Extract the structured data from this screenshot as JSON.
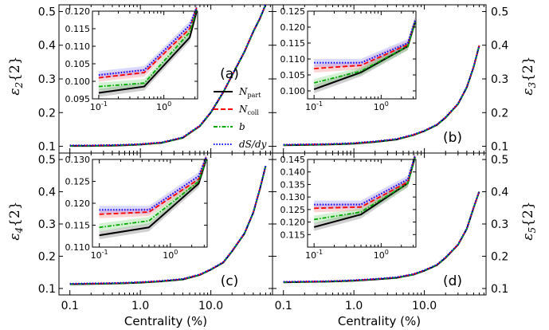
{
  "chart_data": {
    "type": "line",
    "xlabel": "Centrality (%)",
    "x_ticks": [
      "0.1",
      "1.0",
      "10.0"
    ],
    "inset_x_ticks": [
      "10",
      "10"
    ],
    "inset_x_tick_exponents": [
      "-1",
      "0"
    ],
    "legend": [
      {
        "name": "N",
        "sub": "part",
        "color": "#000000",
        "dash": "solid"
      },
      {
        "name": "N",
        "sub": "coll",
        "color": "#ff0000",
        "dash": "dashed"
      },
      {
        "name": "b",
        "sub": "",
        "color": "#00aa00",
        "dash": "dashdot"
      },
      {
        "name": "dS/dy",
        "sub": "",
        "color": "#0000ff",
        "dash": "dotted"
      }
    ],
    "panels": [
      {
        "id": "a",
        "tag": "(a)",
        "ylabel": "ε",
        "ylabel_sub": "2",
        "ylabel_rest": "{2}",
        "ylabel_side": "left",
        "ylim": [
          0.08,
          0.52
        ],
        "yticks": [
          "0.1",
          "0.2",
          "0.3",
          "0.4",
          "0.5"
        ],
        "x": [
          0.1,
          0.2,
          0.4,
          0.6,
          1,
          2,
          4,
          7,
          10,
          15,
          20,
          30,
          40,
          50,
          60
        ],
        "main": {
          "N_part": [
            0.101,
            0.101,
            0.102,
            0.103,
            0.105,
            0.11,
            0.125,
            0.16,
            0.2,
            0.26,
            0.31,
            0.38,
            0.44,
            0.48,
            0.52
          ]
        },
        "inset": {
          "ylim": [
            0.095,
            0.12
          ],
          "yticks": [
            "0.095",
            "0.100",
            "0.105",
            "0.110",
            "0.115",
            "0.120"
          ],
          "x": [
            0.1,
            0.5,
            2.5,
            3.2
          ],
          "series": {
            "N_part": [
              0.0967,
              0.0985,
              0.1125,
              0.12
            ],
            "N_coll": [
              0.101,
              0.1025,
              0.115,
              0.121
            ],
            "b": [
              0.0985,
              0.0995,
              0.114,
              0.1205
            ],
            "dS_dy": [
              0.1018,
              0.1032,
              0.116,
              0.121
            ]
          }
        }
      },
      {
        "id": "b",
        "tag": "(b)",
        "ylabel": "ε",
        "ylabel_sub": "3",
        "ylabel_rest": "{2}",
        "ylabel_side": "right",
        "ylim": [
          0.08,
          0.52
        ],
        "yticks": [
          "0.1",
          "0.2",
          "0.3",
          "0.4",
          "0.5"
        ],
        "x": [
          0.1,
          0.2,
          0.4,
          0.6,
          1,
          2,
          4,
          7,
          10,
          15,
          20,
          30,
          40,
          50,
          60
        ],
        "main": {
          "N_part": [
            0.103,
            0.104,
            0.105,
            0.106,
            0.108,
            0.113,
            0.12,
            0.133,
            0.145,
            0.163,
            0.185,
            0.225,
            0.275,
            0.335,
            0.398
          ]
        },
        "inset": {
          "ylim": [
            0.0975,
            0.125
          ],
          "yticks": [
            "0.100",
            "0.105",
            "0.110",
            "0.115",
            "0.120",
            "0.125"
          ],
          "x": [
            0.1,
            0.5,
            2.5,
            3.2
          ],
          "series": {
            "N_part": [
              0.1005,
              0.1058,
              0.114,
              0.1215
            ],
            "N_coll": [
              0.107,
              0.108,
              0.1145,
              0.1218
            ],
            "b": [
              0.1025,
              0.1062,
              0.114,
              0.1215
            ],
            "dS_dy": [
              0.1088,
              0.1088,
              0.115,
              0.122
            ]
          }
        }
      },
      {
        "id": "c",
        "tag": "(c)",
        "ylabel": "ε",
        "ylabel_sub": "4",
        "ylabel_rest": "{2}",
        "ylabel_side": "left",
        "ylim": [
          0.08,
          0.52
        ],
        "yticks": [
          "0.1",
          "0.2",
          "0.3",
          "0.4",
          "0.5"
        ],
        "x": [
          0.1,
          0.2,
          0.4,
          0.6,
          1,
          2,
          4,
          7,
          10,
          15,
          20,
          30,
          40,
          50,
          60
        ],
        "main": {
          "N_part": [
            0.113,
            0.114,
            0.115,
            0.116,
            0.118,
            0.122,
            0.128,
            0.142,
            0.158,
            0.18,
            0.215,
            0.27,
            0.335,
            0.41,
            0.48
          ]
        },
        "inset": {
          "ylim": [
            0.11,
            0.13
          ],
          "yticks": [
            "0.110",
            "0.115",
            "0.120",
            "0.125",
            "0.130"
          ],
          "x": [
            0.1,
            0.5,
            2.5,
            3.2
          ],
          "series": {
            "N_part": [
              0.1127,
              0.1145,
              0.1245,
              0.13
            ],
            "N_coll": [
              0.1175,
              0.118,
              0.1255,
              0.1305
            ],
            "b": [
              0.1145,
              0.116,
              0.125,
              0.13
            ],
            "dS_dy": [
              0.1185,
              0.1185,
              0.1262,
              0.1305
            ]
          }
        }
      },
      {
        "id": "d",
        "tag": "(d)",
        "ylabel": "ε",
        "ylabel_sub": "5",
        "ylabel_rest": "{2}",
        "ylabel_side": "right",
        "ylim": [
          0.08,
          0.52
        ],
        "yticks": [
          "0.1",
          "0.2",
          "0.3",
          "0.4",
          "0.5"
        ],
        "x": [
          0.1,
          0.2,
          0.4,
          0.6,
          1,
          2,
          4,
          7,
          10,
          15,
          20,
          30,
          40,
          50,
          60
        ],
        "main": {
          "N_part": [
            0.119,
            0.12,
            0.121,
            0.122,
            0.124,
            0.128,
            0.133,
            0.143,
            0.155,
            0.172,
            0.195,
            0.235,
            0.285,
            0.35,
            0.4
          ]
        },
        "inset": {
          "ylim": [
            0.11,
            0.145
          ],
          "yticks": [
            "0.115",
            "0.120",
            "0.125",
            "0.130",
            "0.135",
            "0.140",
            "0.145"
          ],
          "x": [
            0.1,
            0.5,
            2.5,
            3.2
          ],
          "series": {
            "N_part": [
              0.118,
              0.123,
              0.1355,
              0.146
            ],
            "N_coll": [
              0.1255,
              0.126,
              0.136,
              0.1465
            ],
            "b": [
              0.121,
              0.124,
              0.1355,
              0.146
            ],
            "dS_dy": [
              0.127,
              0.127,
              0.137,
              0.1465
            ]
          }
        }
      }
    ]
  }
}
